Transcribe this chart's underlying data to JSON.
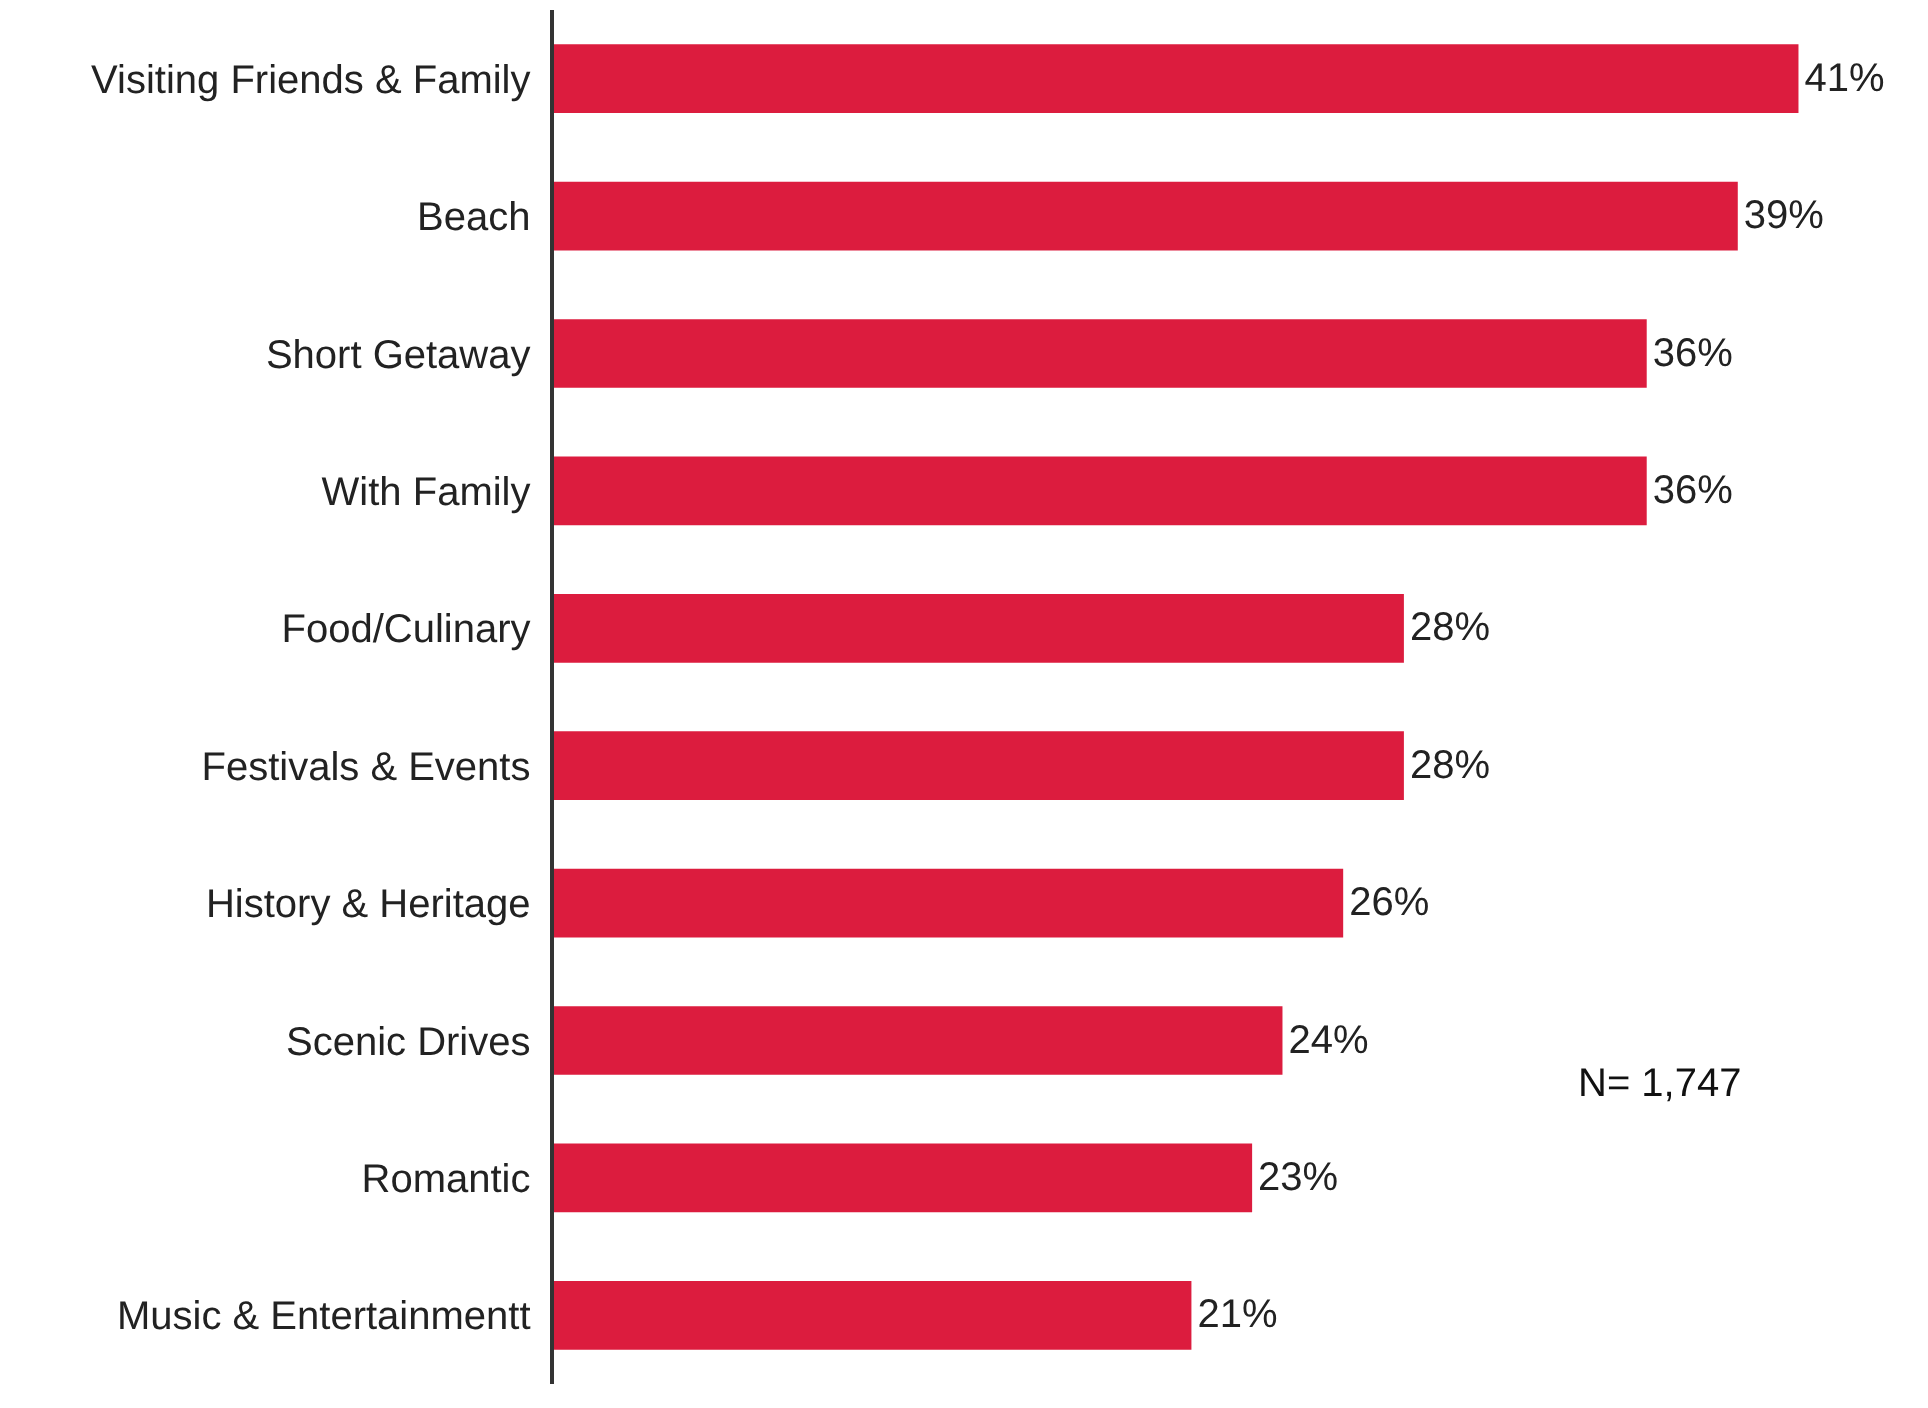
{
  "chart_data": {
    "type": "bar",
    "orientation": "horizontal",
    "categories": [
      "Visiting Friends & Family",
      "Beach",
      "Short Getaway",
      "With Family",
      "Food/Culinary",
      "Festivals & Events",
      "History & Heritage",
      "Scenic Drives",
      "Romantic",
      "Music & Entertainmentt"
    ],
    "values": [
      41,
      39,
      36,
      36,
      28,
      28,
      26,
      24,
      23,
      21
    ],
    "value_labels": [
      "41%",
      "39%",
      "36%",
      "36%",
      "28%",
      "28%",
      "26%",
      "24%",
      "23%",
      "21%"
    ],
    "color": "#dc1c3e",
    "annotations": [
      "N= 1,747"
    ]
  }
}
